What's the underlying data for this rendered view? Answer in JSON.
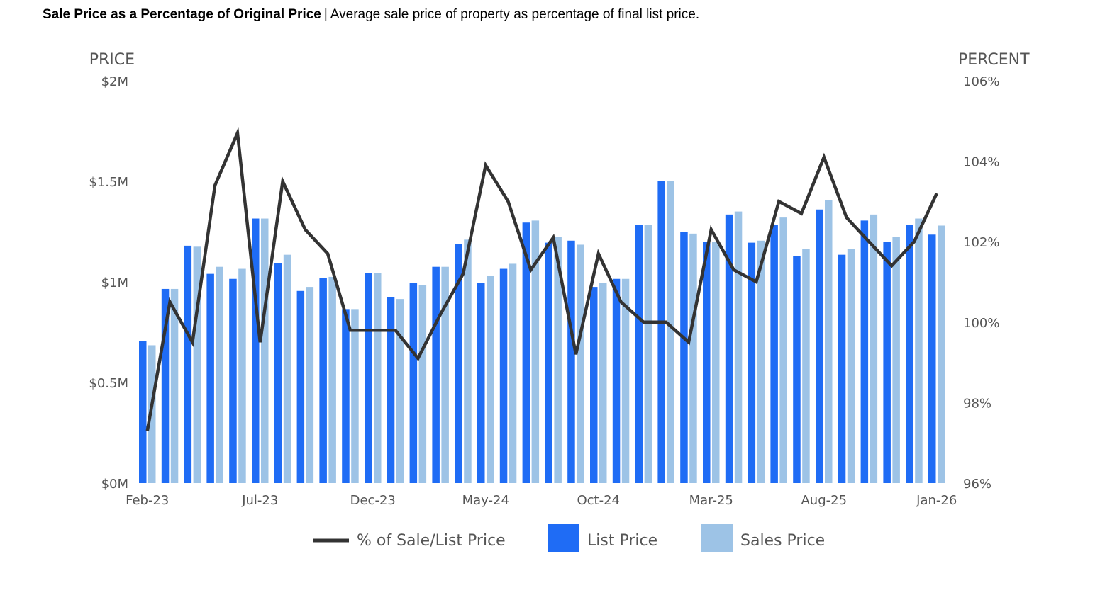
{
  "header": {
    "title": "Sale Price as a Percentage of Original Price",
    "separator": "|",
    "subtitle": "Average sale price of property as percentage of final list price."
  },
  "colors": {
    "list_price": "#1f6cf5",
    "sales_price": "#9dc3e6",
    "percent_line": "#333333",
    "axis_text": "#555555"
  },
  "chart_data": {
    "type": "bar",
    "left_axis": {
      "title": "PRICE",
      "min": 0,
      "max": 2000000,
      "ticks": [
        {
          "value": 0,
          "label": "$0M"
        },
        {
          "value": 500000,
          "label": "$0.5M"
        },
        {
          "value": 1000000,
          "label": "$1M"
        },
        {
          "value": 1500000,
          "label": "$1.5M"
        },
        {
          "value": 2000000,
          "label": "$2M"
        }
      ]
    },
    "right_axis": {
      "title": "PERCENT",
      "min": 96,
      "max": 106,
      "ticks": [
        {
          "value": 96,
          "label": "96%"
        },
        {
          "value": 98,
          "label": "98%"
        },
        {
          "value": 100,
          "label": "100%"
        },
        {
          "value": 102,
          "label": "102%"
        },
        {
          "value": 104,
          "label": "104%"
        },
        {
          "value": 106,
          "label": "106%"
        }
      ]
    },
    "x_tick_labels": [
      {
        "index": 0,
        "label": "Feb-23"
      },
      {
        "index": 5,
        "label": "Jul-23"
      },
      {
        "index": 10,
        "label": "Dec-23"
      },
      {
        "index": 15,
        "label": "May-24"
      },
      {
        "index": 20,
        "label": "Oct-24"
      },
      {
        "index": 25,
        "label": "Mar-25"
      },
      {
        "index": 30,
        "label": "Aug-25"
      },
      {
        "index": 35,
        "label": "Jan-26"
      }
    ],
    "categories": [
      "Feb-23",
      "Mar-23",
      "Apr-23",
      "May-23",
      "Jun-23",
      "Jul-23",
      "Aug-23",
      "Sep-23",
      "Oct-23",
      "Nov-23",
      "Dec-23",
      "Jan-24",
      "Feb-24",
      "Mar-24",
      "Apr-24",
      "May-24",
      "Jun-24",
      "Jul-24",
      "Aug-24",
      "Sep-24",
      "Oct-24",
      "Nov-24",
      "Dec-24",
      "Jan-25",
      "Feb-25",
      "Mar-25",
      "Apr-25",
      "May-25",
      "Jun-25",
      "Jul-25",
      "Aug-25",
      "Sep-25",
      "Oct-25",
      "Nov-25",
      "Dec-25",
      "Jan-26"
    ],
    "series": [
      {
        "name": "List Price",
        "axis": "left",
        "kind": "bar",
        "values": [
          705000,
          965000,
          1180000,
          1040000,
          1015000,
          1315000,
          1095000,
          955000,
          1020000,
          865000,
          1045000,
          925000,
          995000,
          1075000,
          1190000,
          995000,
          1065000,
          1295000,
          1195000,
          1205000,
          975000,
          1015000,
          1285000,
          1500000,
          1250000,
          1200000,
          1335000,
          1195000,
          1285000,
          1130000,
          1360000,
          1135000,
          1305000,
          1200000,
          1285000,
          1235000
        ]
      },
      {
        "name": "Sales Price",
        "axis": "left",
        "kind": "bar",
        "values": [
          685000,
          965000,
          1175000,
          1075000,
          1065000,
          1315000,
          1135000,
          975000,
          1025000,
          865000,
          1045000,
          915000,
          985000,
          1075000,
          1210000,
          1030000,
          1090000,
          1305000,
          1225000,
          1185000,
          995000,
          1015000,
          1285000,
          1500000,
          1240000,
          1200000,
          1350000,
          1205000,
          1320000,
          1165000,
          1405000,
          1165000,
          1335000,
          1225000,
          1315000,
          1280000
        ]
      },
      {
        "name": "% of Sale/List Price",
        "axis": "right",
        "kind": "line",
        "values": [
          97.3,
          100.5,
          99.5,
          103.4,
          104.7,
          99.5,
          103.5,
          102.3,
          101.7,
          99.8,
          99.8,
          99.8,
          99.1,
          100.2,
          101.2,
          103.9,
          103.0,
          101.3,
          102.1,
          99.2,
          101.7,
          100.5,
          100.0,
          100.0,
          99.5,
          102.3,
          101.3,
          101.0,
          103.0,
          102.7,
          104.1,
          102.6,
          102.0,
          101.4,
          102.0,
          103.2
        ]
      }
    ],
    "legend": {
      "position": "bottom",
      "items": [
        {
          "label": "% of Sale/List Price",
          "symbol": "line"
        },
        {
          "label": "List Price",
          "symbol": "box"
        },
        {
          "label": "Sales Price",
          "symbol": "box"
        }
      ]
    }
  }
}
